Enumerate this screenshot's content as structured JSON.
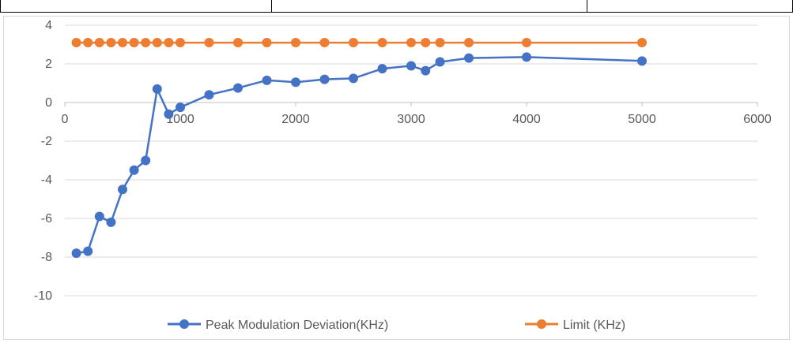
{
  "chart_data": {
    "type": "line",
    "title": "",
    "xlabel": "",
    "ylabel": "",
    "xlim": [
      0,
      6000
    ],
    "ylim": [
      -10,
      4
    ],
    "x_ticks": [
      "0",
      "1000",
      "2000",
      "3000",
      "4000",
      "5000",
      "6000"
    ],
    "y_ticks": [
      "4",
      "2",
      "0",
      "-2",
      "-4",
      "-6",
      "-8",
      "-10"
    ],
    "grid": "horizontal",
    "legend_position": "bottom",
    "series": [
      {
        "name": "Peak Modulation Deviation(KHz)",
        "color": "#4472C4",
        "x": [
          100,
          200,
          300,
          400,
          500,
          600,
          700,
          800,
          900,
          1000,
          1250,
          1500,
          1750,
          2000,
          2250,
          2500,
          2750,
          3000,
          3125,
          3250,
          3500,
          4000,
          5000
        ],
        "values": [
          -7.8,
          -7.7,
          -5.9,
          -6.2,
          -4.5,
          -3.5,
          -3.0,
          0.7,
          -0.6,
          -0.25,
          0.4,
          0.75,
          1.15,
          1.05,
          1.2,
          1.25,
          1.75,
          1.9,
          1.65,
          2.1,
          2.3,
          2.35,
          2.15
        ]
      },
      {
        "name": "Limit (KHz)",
        "color": "#ED7D31",
        "x": [
          100,
          200,
          300,
          400,
          500,
          600,
          700,
          800,
          900,
          1000,
          1250,
          1500,
          1750,
          2000,
          2250,
          2500,
          2750,
          3000,
          3125,
          3250,
          3500,
          4000,
          5000
        ],
        "values": [
          3.1,
          3.1,
          3.1,
          3.1,
          3.1,
          3.1,
          3.1,
          3.1,
          3.1,
          3.1,
          3.1,
          3.1,
          3.1,
          3.1,
          3.1,
          3.1,
          3.1,
          3.1,
          3.1,
          3.1,
          3.1,
          3.1,
          3.1
        ]
      }
    ]
  }
}
